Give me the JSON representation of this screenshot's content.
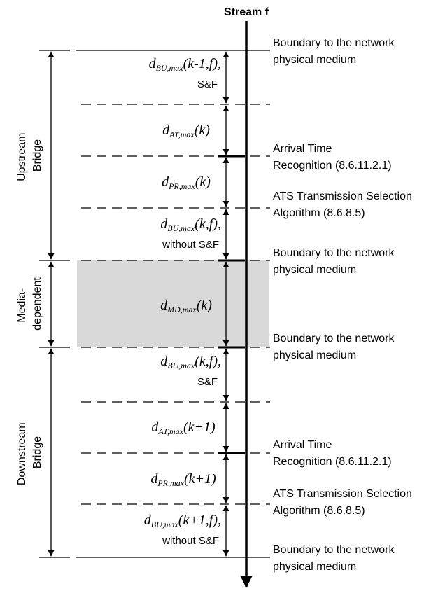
{
  "stream_title": "Stream f",
  "side_labels": {
    "upstream": [
      "Upstream",
      "Bridge"
    ],
    "media": [
      "Media-",
      "dependent"
    ],
    "downstream": [
      "Downstream",
      "Bridge"
    ]
  },
  "right_labels": {
    "boundary_top": [
      "Boundary to the network",
      "physical medium"
    ],
    "arrival_1": [
      "Arrival Time",
      "Recognition (8.6.11.2.1)"
    ],
    "ats_1": [
      "ATS Transmission Selection",
      "Algorithm (8.6.8.5)"
    ],
    "boundary_2": [
      "Boundary to the network",
      "physical medium"
    ],
    "boundary_3": [
      "Boundary to the network",
      "physical medium"
    ],
    "arrival_2": [
      "Arrival Time",
      "Recognition (8.6.11.2.1)"
    ],
    "ats_2": [
      "ATS Transmission Selection",
      "Algorithm (8.6.8.5)"
    ],
    "boundary_bottom": [
      "Boundary to the network",
      "physical medium"
    ]
  },
  "segments": {
    "bu1": {
      "d": "d",
      "sub": "BU,max",
      "arg": "(k-1,f),",
      "note": "S&F"
    },
    "at1": {
      "d": "d",
      "sub": "AT,max",
      "arg": "(k)"
    },
    "pr1": {
      "d": "d",
      "sub": "PR,max",
      "arg": "(k)"
    },
    "bu2": {
      "d": "d",
      "sub": "BU,max",
      "arg": "(k,f),",
      "note": "without S&F"
    },
    "md": {
      "d": "d",
      "sub": "MD,max",
      "arg": "(k)"
    },
    "bu3": {
      "d": "d",
      "sub": "BU,max",
      "arg": "(k,f),",
      "note": "S&F"
    },
    "at2": {
      "d": "d",
      "sub": "AT,max",
      "arg": "(k+1)"
    },
    "pr2": {
      "d": "d",
      "sub": "PR,max",
      "arg": "(k+1)"
    },
    "bu4": {
      "d": "d",
      "sub": "BU,max",
      "arg": "(k+1,f),",
      "note": "without S&F"
    }
  }
}
